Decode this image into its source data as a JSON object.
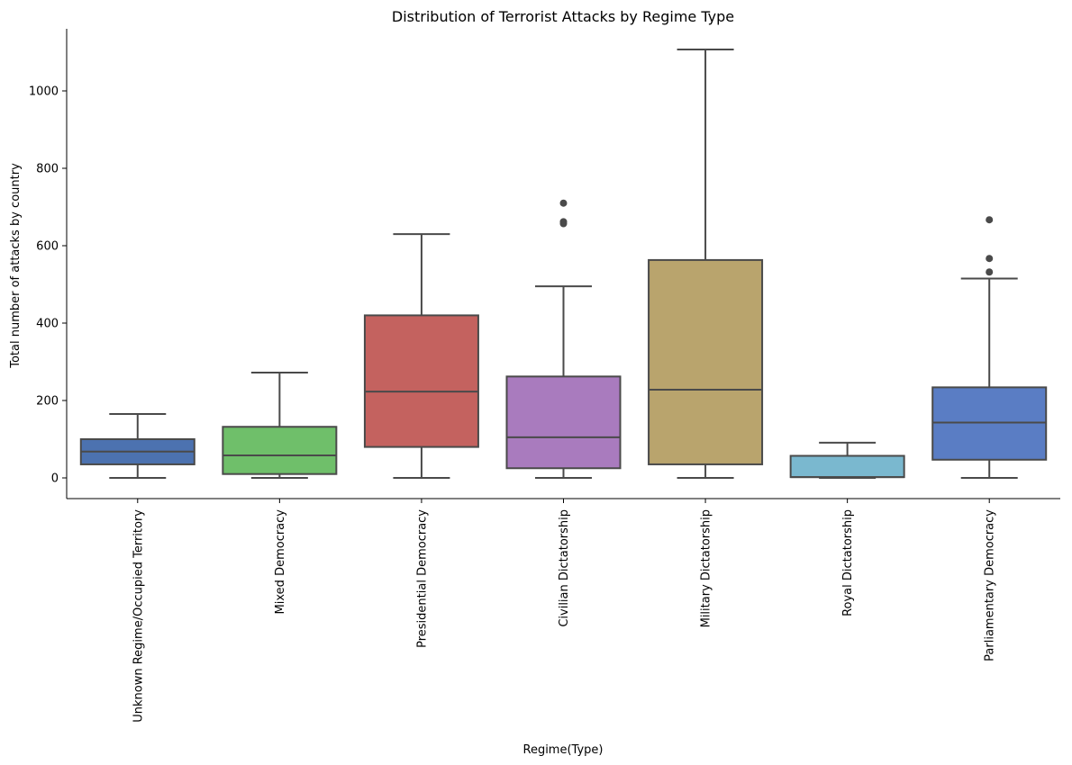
{
  "chart_data": {
    "type": "box",
    "title": "Distribution of Terrorist Attacks by Regime Type",
    "xlabel": "Regime(Type)",
    "ylabel": "Total number of attacks by country",
    "ylim": [
      -55,
      1160
    ],
    "yticks": [
      0,
      200,
      400,
      600,
      800,
      1000
    ],
    "grid": false,
    "categories": [
      {
        "name": "Unknown Regime/Occupied Territory",
        "color": "#4c72b0",
        "whislo": 0,
        "q1": 35,
        "median": 68,
        "q3": 100,
        "whishi": 165,
        "fliers": []
      },
      {
        "name": "Mixed Democracy",
        "color": "#6fbf6a",
        "whislo": 0,
        "q1": 10,
        "median": 58,
        "q3": 132,
        "whishi": 272,
        "fliers": []
      },
      {
        "name": "Presidential Democracy",
        "color": "#c4625f",
        "whislo": 0,
        "q1": 80,
        "median": 223,
        "q3": 420,
        "whishi": 630,
        "fliers": []
      },
      {
        "name": "Civilian Dictatorship",
        "color": "#a97bbe",
        "whislo": 0,
        "q1": 25,
        "median": 105,
        "q3": 262,
        "whishi": 495,
        "fliers": [
          657,
          662,
          710
        ]
      },
      {
        "name": "Military Dictatorship",
        "color": "#b9a46d",
        "whislo": 0,
        "q1": 35,
        "median": 228,
        "q3": 563,
        "whishi": 1107,
        "fliers": []
      },
      {
        "name": "Royal Dictatorship",
        "color": "#7ab8cf",
        "whislo": 0,
        "q1": 2,
        "median": 2,
        "q3": 57,
        "whishi": 91,
        "fliers": []
      },
      {
        "name": "Parliamentary Democracy",
        "color": "#5a7dc4",
        "whislo": 0,
        "q1": 47,
        "median": 143,
        "q3": 234,
        "whishi": 515,
        "fliers": [
          532,
          567,
          667
        ]
      }
    ]
  }
}
